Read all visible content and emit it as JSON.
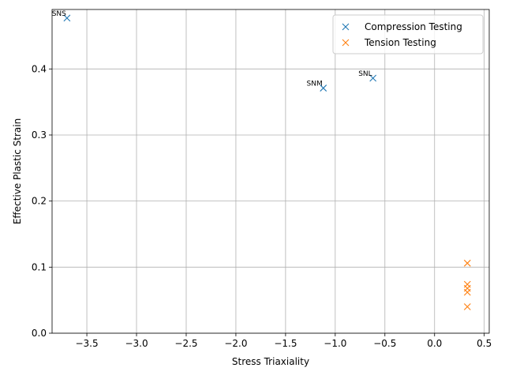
{
  "chart_data": {
    "type": "scatter",
    "title": "",
    "xlabel": "Stress Triaxiality",
    "ylabel": "Effective Plastic Strain",
    "xlim": [
      -3.85,
      0.55
    ],
    "ylim": [
      0.0,
      0.49
    ],
    "xticks": [
      -3.5,
      -3.0,
      -2.5,
      -2.0,
      -1.5,
      -1.0,
      -0.5,
      0.0,
      0.5
    ],
    "xtick_labels": [
      "−3.5",
      "−3.0",
      "−2.5",
      "−2.0",
      "−1.5",
      "−1.0",
      "−0.5",
      "0.0",
      "0.5"
    ],
    "yticks": [
      0.0,
      0.1,
      0.2,
      0.3,
      0.4
    ],
    "ytick_labels": [
      "0.0",
      "0.1",
      "0.2",
      "0.3",
      "0.4"
    ],
    "grid": true,
    "legend_position": "top-right",
    "marker": "x",
    "series": [
      {
        "name": "Compression Testing",
        "color": "#1f77b4",
        "points": [
          {
            "x": -3.7,
            "y": 0.477
          },
          {
            "x": -1.12,
            "y": 0.371
          },
          {
            "x": -0.62,
            "y": 0.386
          }
        ]
      },
      {
        "name": "Tension Testing",
        "color": "#ff7f0e",
        "points": [
          {
            "x": 0.33,
            "y": 0.106
          },
          {
            "x": 0.33,
            "y": 0.074
          },
          {
            "x": 0.33,
            "y": 0.068
          },
          {
            "x": 0.33,
            "y": 0.062
          },
          {
            "x": 0.33,
            "y": 0.04
          }
        ]
      }
    ],
    "annotations": [
      {
        "text": "SNS",
        "x": -3.7,
        "y": 0.477
      },
      {
        "text": "SNM",
        "x": -1.12,
        "y": 0.371
      },
      {
        "text": "SNL",
        "x": -0.62,
        "y": 0.386
      }
    ]
  }
}
